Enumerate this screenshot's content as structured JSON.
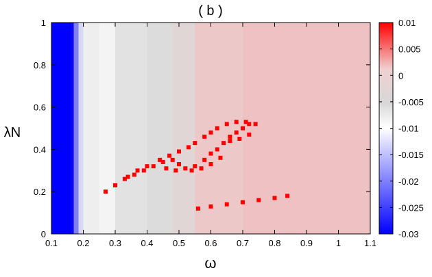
{
  "chart_data": {
    "type": "heatmap",
    "title": "( b )",
    "xlabel": "ω",
    "ylabel": "λN",
    "xlim": [
      0.1,
      1.1
    ],
    "ylim": [
      0,
      1
    ],
    "x_ticks": [
      "0.1",
      "0.2",
      "0.3",
      "0.4",
      "0.5",
      "0.6",
      "0.7",
      "0.8",
      "0.9",
      "1",
      "1.1"
    ],
    "y_ticks": [
      "0",
      "0.2",
      "0.4",
      "0.6",
      "0.8",
      "1"
    ],
    "colorbar": {
      "range": [
        -0.03,
        0.01
      ],
      "ticks": [
        "0.01",
        "0.005",
        "0",
        "-0.005",
        "-0.01",
        "-0.015",
        "-0.02",
        "-0.025",
        "-0.03"
      ],
      "colors": [
        "#0000ff",
        "#ffffff",
        "#ff0000"
      ]
    },
    "regions": [
      {
        "description_value": -0.03,
        "x": [
          0.1,
          0.165
        ],
        "y": [
          0,
          1
        ]
      },
      {
        "description_value": -0.01,
        "x": [
          0.18,
          0.3
        ],
        "y": [
          0,
          1
        ]
      },
      {
        "description_value": 0.0,
        "x": [
          0.3,
          0.5
        ],
        "y": [
          0,
          1
        ]
      },
      {
        "description_value": 0.004,
        "x": [
          0.5,
          1.1
        ],
        "y": [
          0,
          1
        ]
      }
    ],
    "positive_cluster_points": [
      [
        0.27,
        0.2
      ],
      [
        0.3,
        0.23
      ],
      [
        0.33,
        0.26
      ],
      [
        0.36,
        0.28
      ],
      [
        0.39,
        0.3
      ],
      [
        0.42,
        0.32
      ],
      [
        0.45,
        0.34
      ],
      [
        0.48,
        0.35
      ],
      [
        0.5,
        0.33
      ],
      [
        0.52,
        0.31
      ],
      [
        0.55,
        0.32
      ],
      [
        0.58,
        0.35
      ],
      [
        0.6,
        0.38
      ],
      [
        0.62,
        0.4
      ],
      [
        0.64,
        0.43
      ],
      [
        0.66,
        0.46
      ],
      [
        0.68,
        0.48
      ],
      [
        0.7,
        0.5
      ],
      [
        0.72,
        0.52
      ],
      [
        0.74,
        0.52
      ],
      [
        0.62,
        0.5
      ],
      [
        0.6,
        0.48
      ],
      [
        0.58,
        0.46
      ],
      [
        0.55,
        0.43
      ],
      [
        0.53,
        0.41
      ],
      [
        0.5,
        0.39
      ],
      [
        0.47,
        0.37
      ],
      [
        0.44,
        0.35
      ],
      [
        0.4,
        0.32
      ],
      [
        0.37,
        0.3
      ],
      [
        0.34,
        0.27
      ],
      [
        0.65,
        0.52
      ],
      [
        0.68,
        0.53
      ],
      [
        0.71,
        0.53
      ],
      [
        0.66,
        0.44
      ],
      [
        0.69,
        0.45
      ],
      [
        0.72,
        0.47
      ],
      [
        0.63,
        0.36
      ],
      [
        0.6,
        0.33
      ],
      [
        0.57,
        0.31
      ],
      [
        0.54,
        0.3
      ],
      [
        0.49,
        0.3
      ],
      [
        0.46,
        0.31
      ],
      [
        0.56,
        0.12
      ],
      [
        0.6,
        0.13
      ],
      [
        0.65,
        0.14
      ],
      [
        0.7,
        0.15
      ],
      [
        0.75,
        0.16
      ],
      [
        0.8,
        0.17
      ],
      [
        0.84,
        0.18
      ]
    ]
  }
}
